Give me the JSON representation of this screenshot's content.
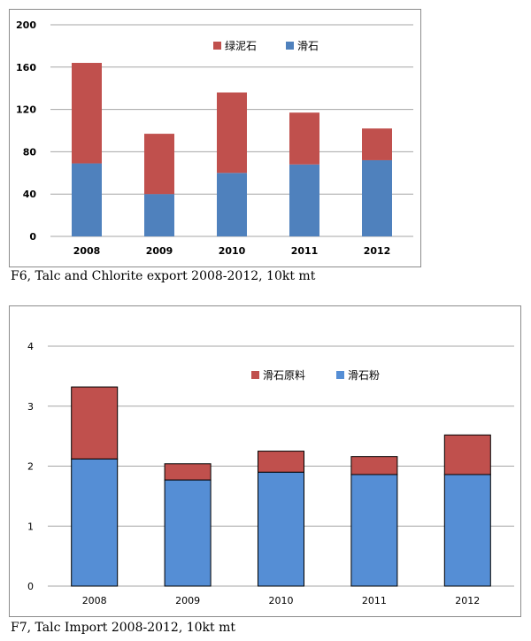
{
  "chart_data": [
    {
      "type": "bar",
      "stacked": true,
      "categories": [
        "2008",
        "2009",
        "2010",
        "2011",
        "2012"
      ],
      "series": [
        {
          "name": "滑石",
          "values": [
            69,
            40,
            60,
            68,
            72
          ],
          "color": "#4f81bd"
        },
        {
          "name": "绿泥石",
          "values": [
            95,
            57,
            76,
            49,
            30
          ],
          "color": "#c0504d"
        }
      ],
      "yticks": [
        "0",
        "40",
        "80",
        "120",
        "160",
        "200"
      ],
      "ylim": [
        0,
        200
      ],
      "grid": true,
      "legend_position": "top-right",
      "legend_order": [
        1,
        0
      ],
      "caption": "F6, Talc and Chlorite export 2008-2012, 10kt mt"
    },
    {
      "type": "bar",
      "stacked": true,
      "categories": [
        "2008",
        "2009",
        "2010",
        "2011",
        "2012"
      ],
      "series": [
        {
          "name": "滑石粉",
          "values": [
            2.12,
            1.77,
            1.9,
            1.86,
            1.86
          ],
          "color": "#558ed5"
        },
        {
          "name": "滑石原料",
          "values": [
            1.2,
            0.27,
            0.35,
            0.3,
            0.66
          ],
          "color": "#c0504d"
        }
      ],
      "yticks": [
        "0",
        "1",
        "2",
        "3",
        "4"
      ],
      "ylim": [
        0,
        4
      ],
      "grid": true,
      "legend_position": "top-right",
      "legend_order": [
        1,
        0
      ],
      "caption": "F7, Talc Import 2008-2012, 10kt mt"
    }
  ]
}
